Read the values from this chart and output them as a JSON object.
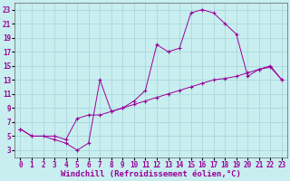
{
  "xlabel": "Windchill (Refroidissement éolien,°C)",
  "bg_color": "#c8eef0",
  "line_color": "#990099",
  "grid_color": "#a8d8dc",
  "line1_x": [
    0,
    1,
    2,
    3,
    4,
    5,
    6,
    7,
    8,
    9,
    10,
    11,
    12,
    13,
    14,
    15,
    16,
    17,
    18,
    19,
    20,
    21,
    22,
    23
  ],
  "line1_y": [
    6,
    5,
    5,
    4.5,
    4,
    3,
    4,
    13,
    8.5,
    9,
    10,
    11.5,
    18,
    17,
    17.5,
    22.5,
    23,
    22.5,
    21,
    19.5,
    13.5,
    14.5,
    15,
    13
  ],
  "line2_x": [
    0,
    1,
    3,
    4,
    5,
    6,
    7,
    8,
    9,
    10,
    11,
    12,
    13,
    14,
    15,
    16,
    17,
    18,
    19,
    20,
    21,
    22,
    23
  ],
  "line2_y": [
    6,
    5,
    5,
    4.5,
    7.5,
    8,
    8,
    8.5,
    9,
    9.5,
    10,
    10.5,
    11,
    11.5,
    12,
    12.5,
    13,
    13.2,
    13.5,
    14,
    14.5,
    14.8,
    13
  ],
  "ylim": [
    2,
    24
  ],
  "xlim": [
    -0.5,
    23.5
  ],
  "yticks": [
    3,
    5,
    7,
    9,
    11,
    13,
    15,
    17,
    19,
    21,
    23
  ],
  "xticks": [
    0,
    1,
    2,
    3,
    4,
    5,
    6,
    7,
    8,
    9,
    10,
    11,
    12,
    13,
    14,
    15,
    16,
    17,
    18,
    19,
    20,
    21,
    22,
    23
  ],
  "tick_fontsize": 5.5,
  "xlabel_fontsize": 6.5,
  "marker": "+"
}
